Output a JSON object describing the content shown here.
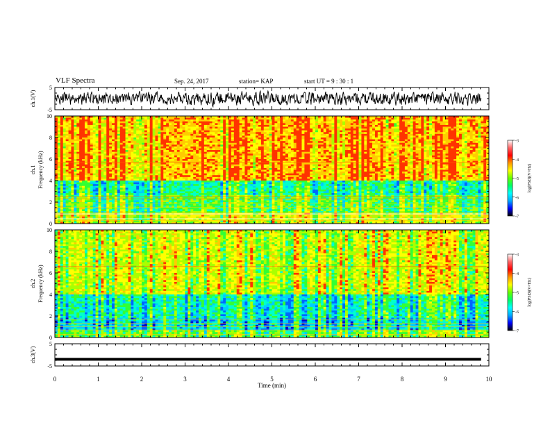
{
  "header": {
    "title": "VLF Spectra",
    "date": "Sep. 24, 2017",
    "station": "station= KAP",
    "start_ut": "start UT =  9 : 30 : 1"
  },
  "chart_data": [
    {
      "type": "line",
      "name": "ch1-waveform",
      "ylabel": "ch.1(V)",
      "ylim": [
        -5,
        5
      ],
      "yticks": [
        "5",
        "-5"
      ],
      "xlim": [
        0,
        10
      ],
      "signal": "noisy waveform between about -3 V and +3 V"
    },
    {
      "type": "heatmap",
      "name": "ch1-spectrogram",
      "ylabel": "ch.1\nFrequency (kHz)",
      "ylim": [
        0,
        10
      ],
      "yticks": [
        "0",
        "2",
        "4",
        "6",
        "8",
        "10"
      ],
      "xlim": [
        0,
        10
      ],
      "colorbar": {
        "label": "log(PSD)(V²/Hz)",
        "range": [
          -7,
          -3
        ],
        "ticks": [
          "-3",
          "-4",
          "-5",
          "-6",
          "-7"
        ]
      }
    },
    {
      "type": "heatmap",
      "name": "ch2-spectrogram",
      "ylabel": "ch.2\nFrequency (kHz)",
      "ylim": [
        0,
        10
      ],
      "yticks": [
        "0",
        "2",
        "4",
        "6",
        "8",
        "10"
      ],
      "xlim": [
        0,
        10
      ],
      "colorbar": {
        "label": "log(PSD)(V²/Hz)",
        "range": [
          -7,
          -3
        ],
        "ticks": [
          "-3",
          "-4",
          "-5",
          "-6",
          "-7"
        ]
      }
    },
    {
      "type": "line",
      "name": "ch3-waveform",
      "ylabel": "ch.3(V)",
      "ylim": [
        -5,
        5
      ],
      "yticks": [
        "5",
        "-5"
      ],
      "xlim": [
        0,
        10
      ],
      "signal": "flat thick line near -2 V"
    }
  ],
  "xaxis": {
    "label": "Time (min)",
    "ticks": [
      "0",
      "1",
      "2",
      "3",
      "4",
      "5",
      "6",
      "7",
      "8",
      "9",
      "10"
    ]
  },
  "colors": {
    "cmap": [
      "#000000",
      "#0000cc",
      "#00aaff",
      "#00ffff",
      "#00ff00",
      "#ffff00",
      "#ff0000",
      "#ffffff"
    ]
  }
}
